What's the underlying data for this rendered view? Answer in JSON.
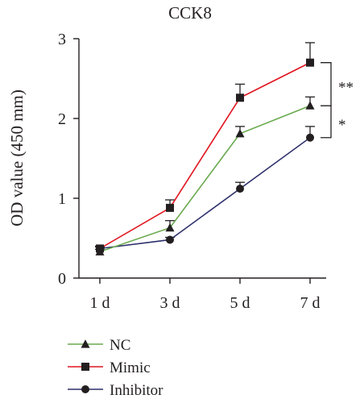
{
  "chart_data": {
    "type": "line",
    "title": "CCK8",
    "xlabel": "",
    "ylabel": "OD value (450 mm)",
    "categories": [
      "1 d",
      "3 d",
      "5 d",
      "7 d"
    ],
    "ylim": [
      0,
      3
    ],
    "yticks": [
      "0",
      "1",
      "2",
      "3"
    ],
    "grid": false,
    "legend_position": "bottom-left",
    "series": [
      {
        "name": "NC",
        "values": [
          0.33,
          0.63,
          1.81,
          2.16
        ],
        "errors": [
          0.03,
          0.09,
          0.09,
          0.11
        ],
        "marker": "triangle",
        "color": "#6aaa4f"
      },
      {
        "name": "Mimic",
        "values": [
          0.37,
          0.88,
          2.26,
          2.7
        ],
        "errors": [
          0.03,
          0.1,
          0.17,
          0.25
        ],
        "marker": "square",
        "color": "#e0151f"
      },
      {
        "name": "Inhibitor",
        "values": [
          0.37,
          0.48,
          1.12,
          1.76
        ],
        "errors": [
          0.02,
          0.03,
          0.08,
          0.14
        ],
        "marker": "circle",
        "color": "#2d2f6b"
      }
    ],
    "annotations": [
      {
        "text": "**",
        "between": [
          "Mimic",
          "NC"
        ],
        "at": "7 d"
      },
      {
        "text": "*",
        "between": [
          "NC",
          "Inhibitor"
        ],
        "at": "7 d"
      }
    ]
  }
}
